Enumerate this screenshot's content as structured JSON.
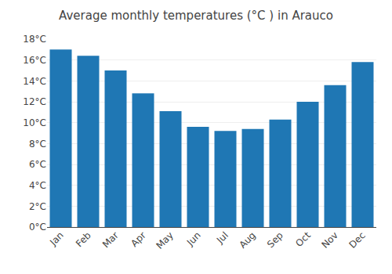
{
  "chart_data": {
    "type": "bar",
    "title": "Average monthly temperatures (°C ) in Arauco",
    "categories": [
      "Jan",
      "Feb",
      "Mar",
      "Apr",
      "May",
      "Jun",
      "Jul",
      "Aug",
      "Sep",
      "Oct",
      "Nov",
      "Dec"
    ],
    "values": [
      17.0,
      16.4,
      15.0,
      12.8,
      11.1,
      9.6,
      9.2,
      9.4,
      10.3,
      12.0,
      13.6,
      15.8
    ],
    "ylim": [
      0,
      18
    ],
    "yticks": [
      {
        "value": 0,
        "label": "0°C"
      },
      {
        "value": 2,
        "label": "2°C"
      },
      {
        "value": 4,
        "label": "4°C"
      },
      {
        "value": 6,
        "label": "6°C"
      },
      {
        "value": 8,
        "label": "8°C"
      },
      {
        "value": 10,
        "label": "10°C"
      },
      {
        "value": 12,
        "label": "12°C"
      },
      {
        "value": 14,
        "label": "14°C"
      },
      {
        "value": 16,
        "label": "16°C"
      },
      {
        "value": 18,
        "label": "18°C"
      }
    ],
    "grid": true
  }
}
